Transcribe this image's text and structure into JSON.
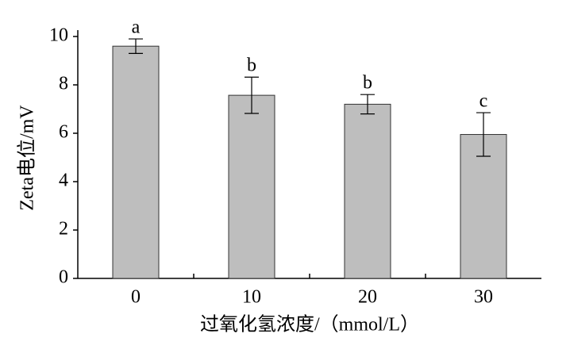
{
  "chart_data": {
    "type": "bar",
    "x_label": "过氧化氢浓度/（mmol/L）",
    "y_label": "Zeta电位/mV",
    "categories": [
      "0",
      "10",
      "20",
      "30"
    ],
    "values": [
      9.6,
      7.57,
      7.2,
      5.95
    ],
    "errors": [
      0.3,
      0.75,
      0.4,
      0.9
    ],
    "significance_labels": [
      "a",
      "b",
      "b",
      "c"
    ],
    "color": "#bebebe",
    "ylim": [
      0,
      10
    ],
    "yticks": [
      0,
      2,
      4,
      6,
      8,
      10
    ],
    "grid": false
  }
}
